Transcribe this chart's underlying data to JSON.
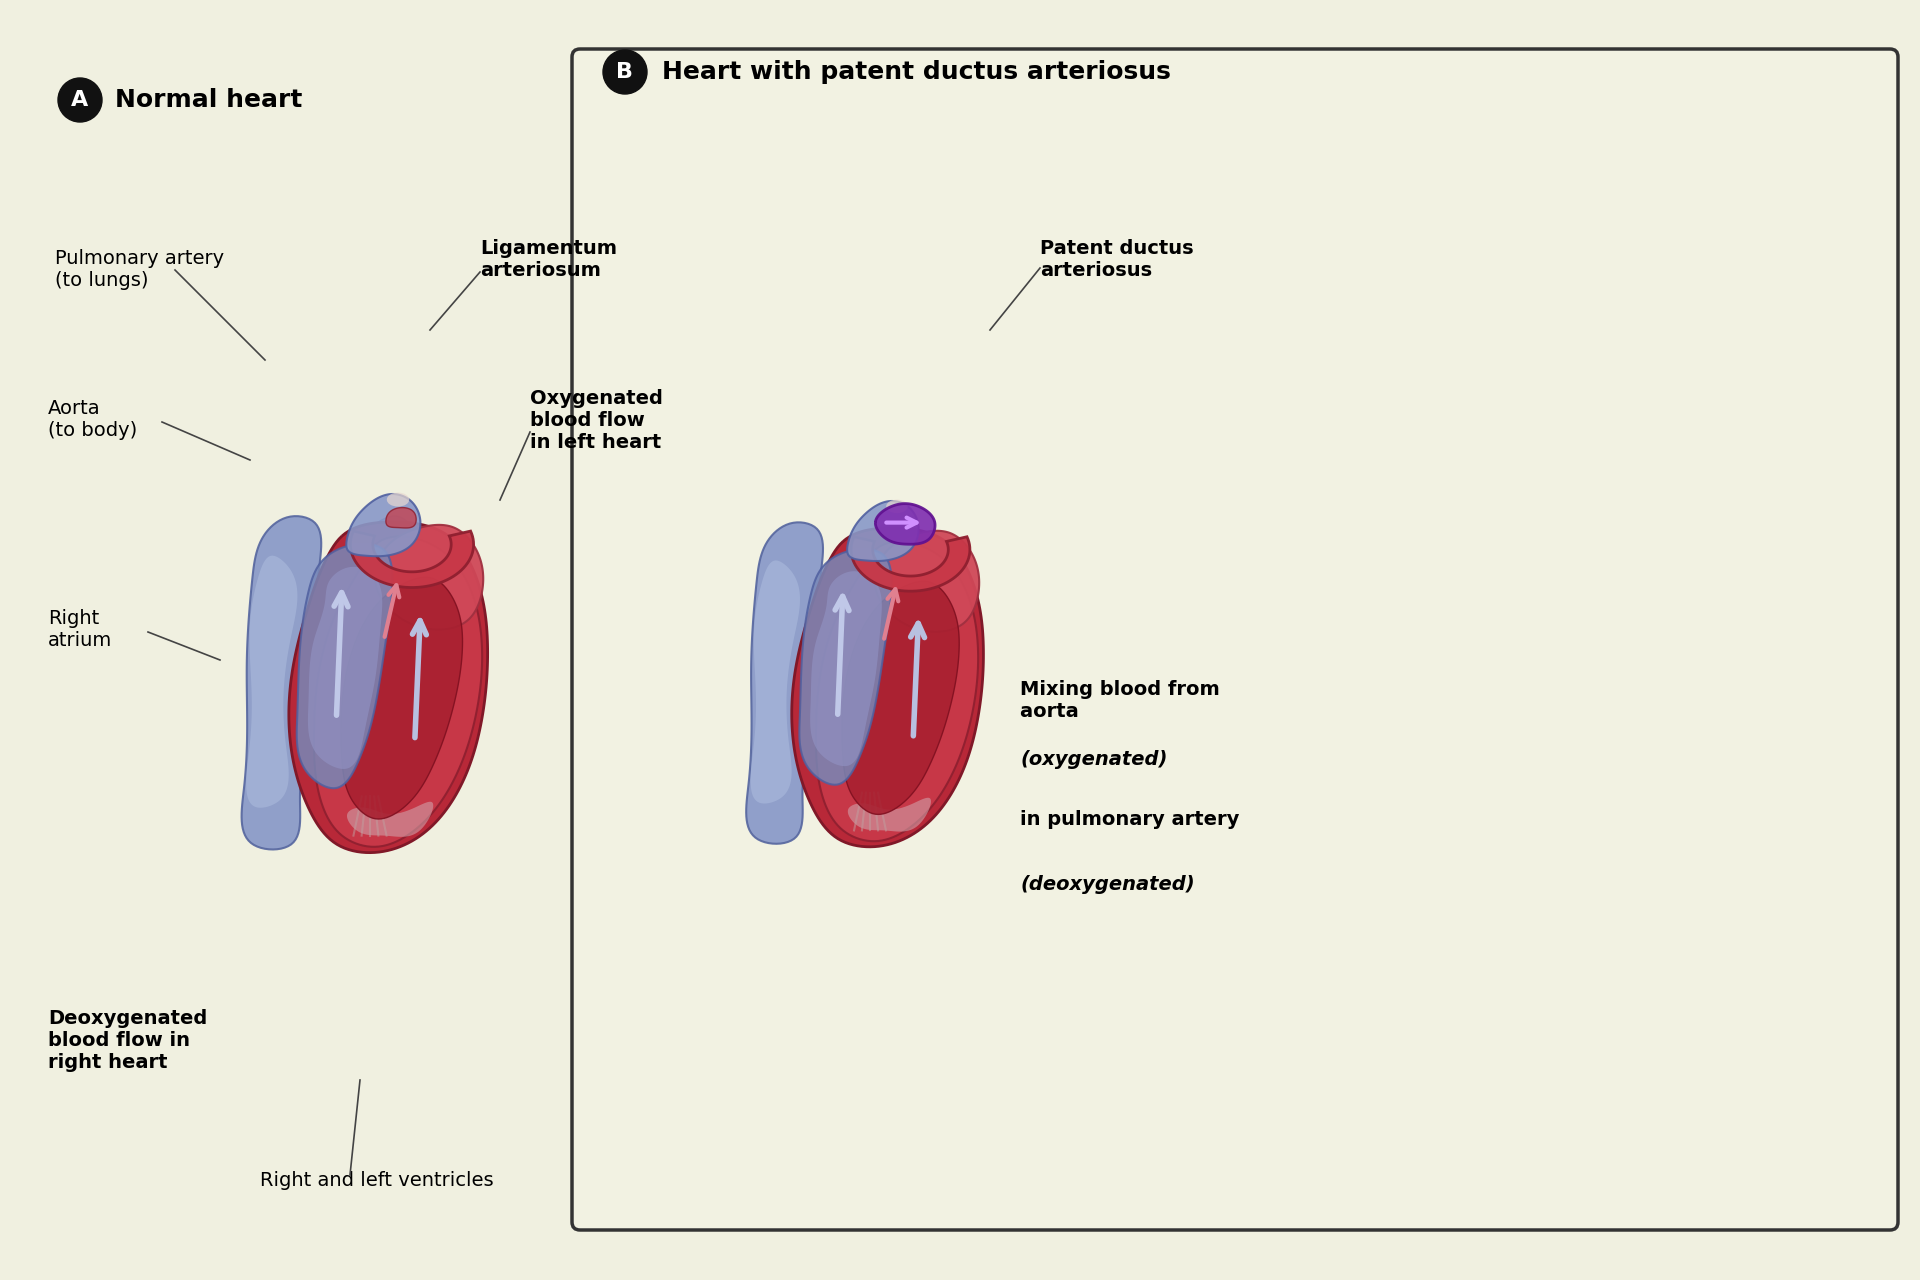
{
  "background_color": "#f0f0e0",
  "panel_A_title": "Normal heart",
  "panel_B_title": "Heart with patent ductus arteriosus",
  "panel_A_label": "A",
  "panel_B_label": "B",
  "panel_B_box_color": "#222222",
  "title_fontsize": 18,
  "label_circle_color": "#111111",
  "label_circle_text_color": "#ffffff",
  "label_fontsize": 14,
  "colors": {
    "bg": "#f0f0e0",
    "blue_vessel": "#7080b8",
    "blue_vessel_light": "#a0b0d8",
    "blue_vessel_dark": "#404880",
    "red_heart": "#b02030",
    "red_heart_light": "#d04050",
    "red_heart_dark": "#801020",
    "pink_heart": "#c87080",
    "purple_pda": "#7030a0",
    "white_blue": "#d0d8f0",
    "arrow_blue": "#9090d0",
    "arrow_red": "#d06070"
  }
}
